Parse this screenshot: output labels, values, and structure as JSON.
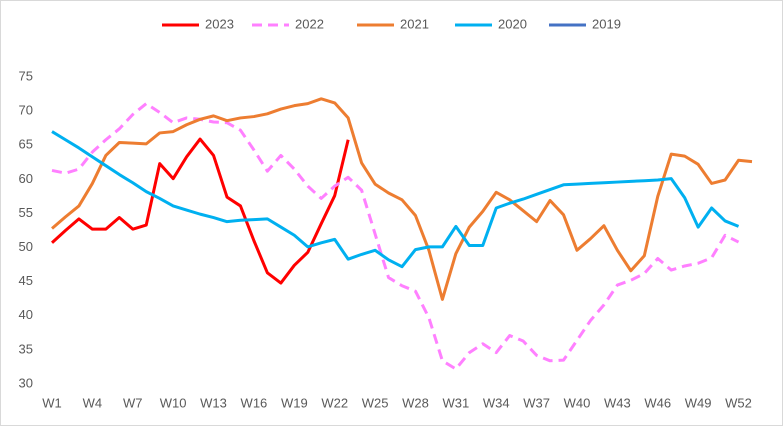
{
  "chart_data": {
    "type": "line",
    "categories": [
      "W1",
      null,
      null,
      "W4",
      null,
      null,
      "W7",
      null,
      null,
      "W10",
      null,
      null,
      "W13",
      null,
      null,
      "W16",
      null,
      null,
      "W19",
      null,
      null,
      "W22",
      null,
      null,
      "W25",
      null,
      null,
      "W28",
      null,
      null,
      "W31",
      null,
      null,
      "W34",
      null,
      null,
      "W37",
      null,
      null,
      "W40",
      null,
      null,
      "W43",
      null,
      null,
      "W46",
      null,
      null,
      "W49",
      null,
      null,
      "W52",
      null
    ],
    "ylim": [
      30,
      75
    ],
    "yticks": [
      30,
      35,
      40,
      45,
      50,
      55,
      60,
      65,
      70,
      75
    ],
    "legend": "top",
    "series": [
      {
        "name": "2023",
        "color": "#ff0000",
        "dashed": false,
        "values": [
          50.7,
          52.5,
          54.2,
          52.7,
          52.7,
          54.4,
          52.7,
          53.3,
          62.3,
          60.1,
          63.3,
          65.9,
          63.5,
          57.4,
          56.1,
          51,
          46.3,
          44.8,
          47.4,
          49.3,
          53.5,
          57.6,
          65.8,
          null,
          null,
          null,
          null,
          null,
          null,
          null,
          null,
          null,
          null,
          null,
          null,
          null,
          null,
          null,
          null,
          null,
          null,
          null,
          null,
          null,
          null,
          null,
          null,
          null,
          null,
          null,
          null,
          null,
          null
        ]
      },
      {
        "name": "2022",
        "color": "#ff80ff",
        "dashed": true,
        "values": [
          61.3,
          60.9,
          61.5,
          64,
          65.8,
          67.4,
          69.5,
          71.1,
          69.8,
          68.3,
          69,
          68.8,
          68.4,
          68.3,
          67.2,
          64.3,
          61.2,
          63.5,
          61.5,
          59,
          57.2,
          59,
          60.3,
          58.4,
          52,
          45.6,
          44.4,
          43.6,
          39.7,
          33.4,
          32.2,
          34.6,
          35.9,
          34.6,
          37.1,
          36.3,
          34.2,
          33.4,
          33.5,
          36.4,
          39.3,
          41.6,
          44.5,
          45.2,
          46.2,
          48.4,
          46.7,
          47.3,
          47.7,
          48.5,
          51.8,
          50.8,
          null
        ]
      },
      {
        "name": "2021",
        "color": "#ed7d31",
        "dashed": false,
        "values": [
          52.8,
          54.5,
          56.1,
          59.4,
          63.5,
          65.4,
          65.3,
          65.2,
          66.8,
          67,
          68,
          68.8,
          69.3,
          68.6,
          69,
          69.2,
          69.6,
          70.3,
          70.8,
          71.1,
          71.8,
          71.2,
          69,
          62.4,
          59.3,
          58,
          57,
          54.7,
          49.6,
          42.4,
          49.1,
          53,
          55.3,
          58.1,
          57,
          55.4,
          53.8,
          56.9,
          54.8,
          49.6,
          51.3,
          53.2,
          49.6,
          46.6,
          48.8,
          57.5,
          63.7,
          63.4,
          62.2,
          59.4,
          59.9,
          62.8,
          62.6
        ]
      },
      {
        "name": "2020",
        "color": "#00b0f0",
        "dashed": false,
        "values": [
          67,
          65.8,
          64.6,
          63.3,
          62,
          60.7,
          59.5,
          58.2,
          57.2,
          56.1,
          55.5,
          54.9,
          54.4,
          53.8,
          54,
          54.1,
          54.2,
          53,
          51.8,
          50.1,
          50.7,
          51.2,
          48.3,
          49,
          49.6,
          48.2,
          47.2,
          49.7,
          50.1,
          50.1,
          53.1,
          50.3,
          50.3,
          55.8,
          56.5,
          57.1,
          57.8,
          58.5,
          59.2,
          59.3,
          59.4,
          59.5,
          59.6,
          59.7,
          59.8,
          59.9,
          60.1,
          57.3,
          53,
          55.8,
          53.9,
          53.1,
          null
        ]
      },
      {
        "name": "2019",
        "color": "#4472c4",
        "dashed": false,
        "values": [
          null,
          null,
          null,
          null,
          null,
          null,
          null,
          null,
          null,
          null,
          null,
          null,
          null,
          null,
          null,
          null,
          null,
          null,
          null,
          null,
          null,
          null,
          null,
          null,
          null,
          null,
          null,
          null,
          null,
          null,
          null,
          null,
          null,
          null,
          null,
          null,
          null,
          null,
          null,
          null,
          null,
          null,
          null,
          null,
          null,
          null,
          null,
          null,
          null,
          null,
          null,
          null,
          null
        ]
      }
    ]
  }
}
